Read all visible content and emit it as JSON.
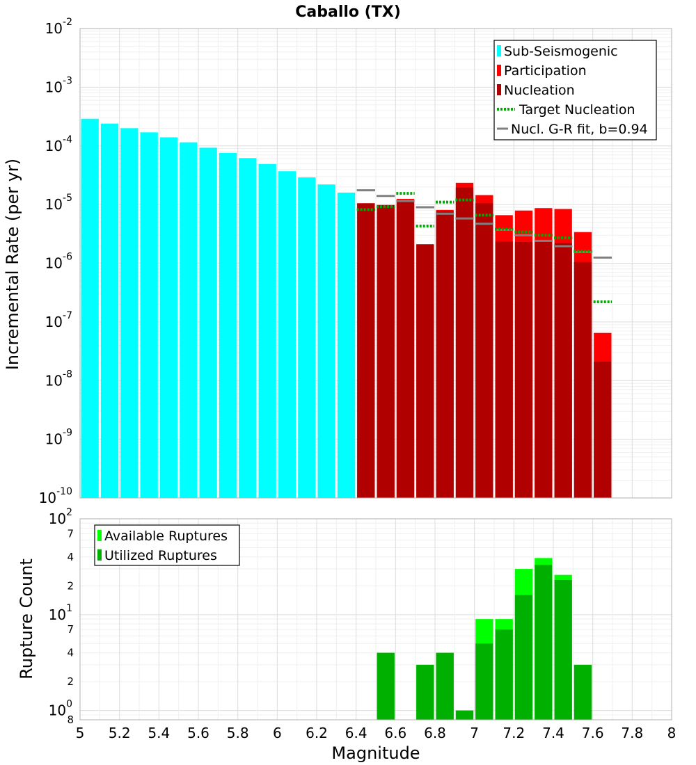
{
  "chart_data": [
    {
      "type": "bar",
      "title": "Caballo (TX)",
      "xlabel": "",
      "ylabel": "Incremental Rate (per yr)",
      "xlim": [
        5,
        8
      ],
      "ylim": [
        1e-10,
        0.01
      ],
      "yscale": "log",
      "bin_width": 0.1,
      "y_tick_labels": [
        {
          "value": 1e-10,
          "base": "10",
          "exp": "-10"
        },
        {
          "value": 1e-09,
          "base": "10",
          "exp": "-9"
        },
        {
          "value": 1e-08,
          "base": "10",
          "exp": "-8"
        },
        {
          "value": 1e-07,
          "base": "10",
          "exp": "-7"
        },
        {
          "value": 1e-06,
          "base": "10",
          "exp": "-6"
        },
        {
          "value": 1e-05,
          "base": "10",
          "exp": "-5"
        },
        {
          "value": 0.0001,
          "base": "10",
          "exp": "-4"
        },
        {
          "value": 0.001,
          "base": "10",
          "exp": "-3"
        },
        {
          "value": 0.01,
          "base": "10",
          "exp": "-2"
        }
      ],
      "legend": {
        "position": "top-right",
        "entries": [
          "Sub-Seismogenic",
          "Participation",
          "Nucleation",
          "Target Nucleation",
          "Nucl. G-R fit, b=0.94"
        ]
      },
      "series": [
        {
          "name": "Sub-Seismogenic",
          "kind": "bar",
          "color": "#00ffff",
          "x": [
            5.05,
            5.15,
            5.25,
            5.35,
            5.45,
            5.55,
            5.65,
            5.75,
            5.85,
            5.95,
            6.05,
            6.15,
            6.25,
            6.35
          ],
          "values": [
            0.00029,
            0.00024,
            0.0002,
            0.00017,
            0.00014,
            0.000115,
            9.3e-05,
            7.6e-05,
            6.2e-05,
            4.9e-05,
            3.7e-05,
            2.9e-05,
            2.2e-05,
            1.6e-05
          ]
        },
        {
          "name": "Participation",
          "kind": "bar",
          "color": "#ff0000",
          "x": [
            6.45,
            6.55,
            6.65,
            6.75,
            6.85,
            6.95,
            7.05,
            7.15,
            7.25,
            7.35,
            7.45,
            7.55,
            7.65
          ],
          "values": [
            1.05e-05,
            9.8e-06,
            1.25e-05,
            2.1e-06,
            8.1e-06,
            2.35e-05,
            1.45e-05,
            6.6e-06,
            7.9e-06,
            8.7e-06,
            8.4e-06,
            3.4e-06,
            6.5e-08
          ]
        },
        {
          "name": "Nucleation",
          "kind": "bar",
          "color": "#b00000",
          "x": [
            6.45,
            6.55,
            6.65,
            6.75,
            6.85,
            6.95,
            7.05,
            7.15,
            7.25,
            7.35,
            7.45,
            7.55,
            7.65
          ],
          "values": [
            1.05e-05,
            9.8e-06,
            1.2e-05,
            2.1e-06,
            7.6e-06,
            1.95e-05,
            1.05e-05,
            2.35e-06,
            2.3e-06,
            2.5e-06,
            2.2e-06,
            1.05e-06,
            2.1e-08
          ]
        },
        {
          "name": "Target Nucleation",
          "kind": "step",
          "color": "#00aa00",
          "dash": "dotted",
          "x": [
            6.45,
            6.55,
            6.65,
            6.75,
            6.85,
            6.95,
            7.05,
            7.15,
            7.25,
            7.35,
            7.45,
            7.55,
            7.65
          ],
          "values": [
            8.2e-06,
            9.2e-06,
            1.55e-05,
            4.3e-06,
            1.1e-05,
            1.2e-05,
            6.6e-06,
            3.8e-06,
            3.4e-06,
            3e-06,
            2.7e-06,
            1.6e-06,
            2.2e-07
          ]
        },
        {
          "name": "Nucl. G-R fit, b=0.94",
          "kind": "step",
          "color": "#808080",
          "dash": "solid",
          "x": [
            6.45,
            6.55,
            6.65,
            6.75,
            6.85,
            6.95,
            7.05,
            7.15,
            7.25,
            7.35,
            7.45,
            7.55,
            7.65
          ],
          "values": [
            1.75e-05,
            1.4e-05,
            1.15e-05,
            9e-06,
            7e-06,
            5.8e-06,
            4.7e-06,
            3.7e-06,
            3e-06,
            2.4e-06,
            1.95e-06,
            1.55e-06,
            1.25e-06
          ]
        }
      ]
    },
    {
      "type": "bar",
      "title": "",
      "xlabel": "Magnitude",
      "ylabel": "Rupture Count",
      "xlim": [
        5,
        8
      ],
      "ylim": [
        0.8,
        100
      ],
      "yscale": "log",
      "bin_width": 0.1,
      "x_ticks": [
        "5",
        "5.2",
        "5.4",
        "5.6",
        "5.8",
        "6",
        "6.2",
        "6.4",
        "6.6",
        "6.8",
        "7",
        "7.2",
        "7.4",
        "7.6",
        "7.8",
        "8"
      ],
      "y_tick_labels": [
        {
          "value": 1,
          "base": "10",
          "exp": "0"
        },
        {
          "value": 10,
          "base": "10",
          "exp": "1"
        },
        {
          "value": 100,
          "base": "10",
          "exp": "2"
        }
      ],
      "y_minor_labels": [
        {
          "value": 0.8,
          "label": "8"
        },
        {
          "value": 2,
          "label": "2"
        },
        {
          "value": 4,
          "label": "4"
        },
        {
          "value": 7,
          "label": "7"
        },
        {
          "value": 20,
          "label": "2"
        },
        {
          "value": 40,
          "label": "4"
        },
        {
          "value": 70,
          "label": "7"
        }
      ],
      "legend": {
        "position": "top-left",
        "entries": [
          "Available Ruptures",
          "Utilized Ruptures"
        ]
      },
      "series": [
        {
          "name": "Available Ruptures",
          "kind": "bar",
          "color": "#00ff00",
          "x": [
            6.55,
            6.75,
            6.85,
            6.95,
            7.05,
            7.15,
            7.25,
            7.35,
            7.45,
            7.55
          ],
          "values": [
            4,
            3,
            4,
            1,
            9,
            9,
            30,
            39,
            26,
            3
          ]
        },
        {
          "name": "Utilized Ruptures",
          "kind": "bar",
          "color": "#00b000",
          "x": [
            6.55,
            6.75,
            6.85,
            6.95,
            7.05,
            7.15,
            7.25,
            7.35,
            7.45,
            7.55
          ],
          "values": [
            4,
            3,
            4,
            1,
            5,
            7,
            16,
            33,
            23,
            3
          ]
        }
      ]
    }
  ]
}
